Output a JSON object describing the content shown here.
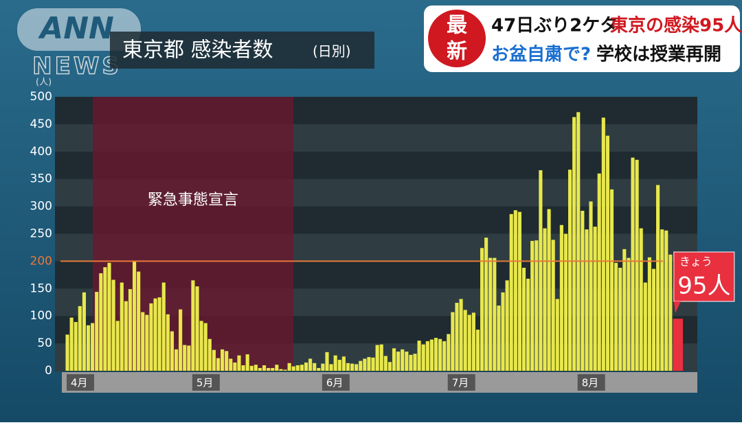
{
  "logo": {
    "top": "ANN",
    "bottom": "NEWS"
  },
  "headline": {
    "badge": [
      "最",
      "新"
    ],
    "line1": [
      "47日ぶり2ケタ",
      "東京の感染95人"
    ],
    "line2": [
      "お盆自粛で?",
      "学校は授業再開"
    ]
  },
  "chart_data": {
    "type": "bar",
    "title": "東京都 感染者数",
    "subtitle": "(日別)",
    "y_label": "(人)",
    "annotation": "緊急事態宣言",
    "callout": "きょう",
    "categories": [
      "4月",
      null,
      null,
      null,
      null,
      null,
      null,
      null,
      null,
      null,
      null,
      null,
      null,
      null,
      null,
      null,
      null,
      null,
      null,
      null,
      null,
      null,
      null,
      null,
      null,
      null,
      null,
      null,
      null,
      null,
      "5月",
      null,
      null,
      null,
      null,
      null,
      null,
      null,
      null,
      null,
      null,
      null,
      null,
      null,
      null,
      null,
      null,
      null,
      null,
      null,
      null,
      null,
      null,
      null,
      null,
      null,
      null,
      null,
      null,
      null,
      null,
      "6月",
      null,
      null,
      null,
      null,
      null,
      null,
      null,
      null,
      null,
      null,
      null,
      null,
      null,
      null,
      null,
      null,
      null,
      null,
      null,
      null,
      null,
      null,
      null,
      null,
      null,
      null,
      null,
      null,
      null,
      "7月",
      null,
      null,
      null,
      null,
      null,
      null,
      null,
      null,
      null,
      null,
      null,
      null,
      null,
      null,
      null,
      null,
      null,
      null,
      null,
      null,
      null,
      null,
      null,
      null,
      null,
      null,
      null,
      null,
      null,
      null,
      "8月",
      null,
      null,
      null,
      null,
      null,
      null,
      null,
      null,
      null,
      null,
      null,
      null,
      null,
      null,
      null,
      null,
      null,
      null,
      null,
      null,
      null,
      null,
      null
    ],
    "values": [
      66,
      97,
      89,
      118,
      143,
      83,
      87,
      144,
      178,
      189,
      197,
      166,
      91,
      161,
      127,
      149,
      201,
      181,
      107,
      102,
      123,
      132,
      134,
      161,
      103,
      72,
      39,
      112,
      47,
      46,
      165,
      154,
      91,
      87,
      58,
      38,
      23,
      39,
      36,
      22,
      15,
      28,
      10,
      30,
      9,
      11,
      5,
      10,
      5,
      5,
      11,
      3,
      2,
      14,
      8,
      10,
      11,
      15,
      22,
      14,
      5,
      13,
      34,
      12,
      28,
      20,
      26,
      14,
      13,
      12,
      18,
      22,
      25,
      24,
      47,
      48,
      27,
      16,
      41,
      35,
      39,
      35,
      29,
      31,
      55,
      48,
      54,
      57,
      60,
      58,
      54,
      67,
      107,
      124,
      131,
      111,
      102,
      106,
      75,
      224,
      243,
      206,
      206,
      119,
      143,
      165,
      286,
      293,
      290,
      188,
      168,
      237,
      238,
      366,
      260,
      295,
      239,
      131,
      266,
      250,
      367,
      463,
      472,
      292,
      258,
      309,
      263,
      360,
      462,
      429,
      331,
      197,
      188,
      222,
      206,
      389,
      385,
      260,
      161,
      207,
      186,
      339,
      258,
      256,
      212,
      95
    ],
    "value_labels": [
      null,
      null,
      null,
      null,
      null,
      null,
      null,
      null,
      null,
      null,
      null,
      null,
      null,
      null,
      null,
      null,
      null,
      null,
      null,
      null,
      null,
      null,
      null,
      null,
      null,
      null,
      null,
      null,
      null,
      null,
      null,
      null,
      null,
      null,
      null,
      null,
      null,
      null,
      null,
      null,
      null,
      null,
      null,
      null,
      null,
      null,
      null,
      null,
      null,
      null,
      null,
      null,
      null,
      null,
      null,
      null,
      null,
      null,
      null,
      null,
      null,
      null,
      null,
      null,
      null,
      null,
      null,
      null,
      null,
      null,
      null,
      null,
      null,
      null,
      null,
      null,
      null,
      null,
      null,
      null,
      null,
      null,
      null,
      null,
      null,
      null,
      null,
      null,
      null,
      null,
      null,
      null,
      null,
      null,
      null,
      null,
      null,
      null,
      null,
      null,
      null,
      null,
      null,
      null,
      null,
      null,
      null,
      null,
      null,
      null,
      null,
      null,
      null,
      null,
      null,
      null,
      null,
      null,
      null,
      null,
      null,
      null,
      null,
      null,
      null,
      null,
      null,
      null,
      null,
      null,
      null,
      null,
      null,
      null,
      null,
      null,
      null,
      null,
      null,
      null,
      null,
      null,
      null,
      null,
      null,
      "95人"
    ],
    "color": "#e8e84c",
    "today_color": "#e8303f",
    "ylim": [
      0,
      500
    ],
    "yticks": [
      0,
      50,
      100,
      150,
      200,
      250,
      300,
      350,
      400,
      450,
      500
    ],
    "reference_line": {
      "value": 200,
      "color": "#e8783a"
    }
  }
}
